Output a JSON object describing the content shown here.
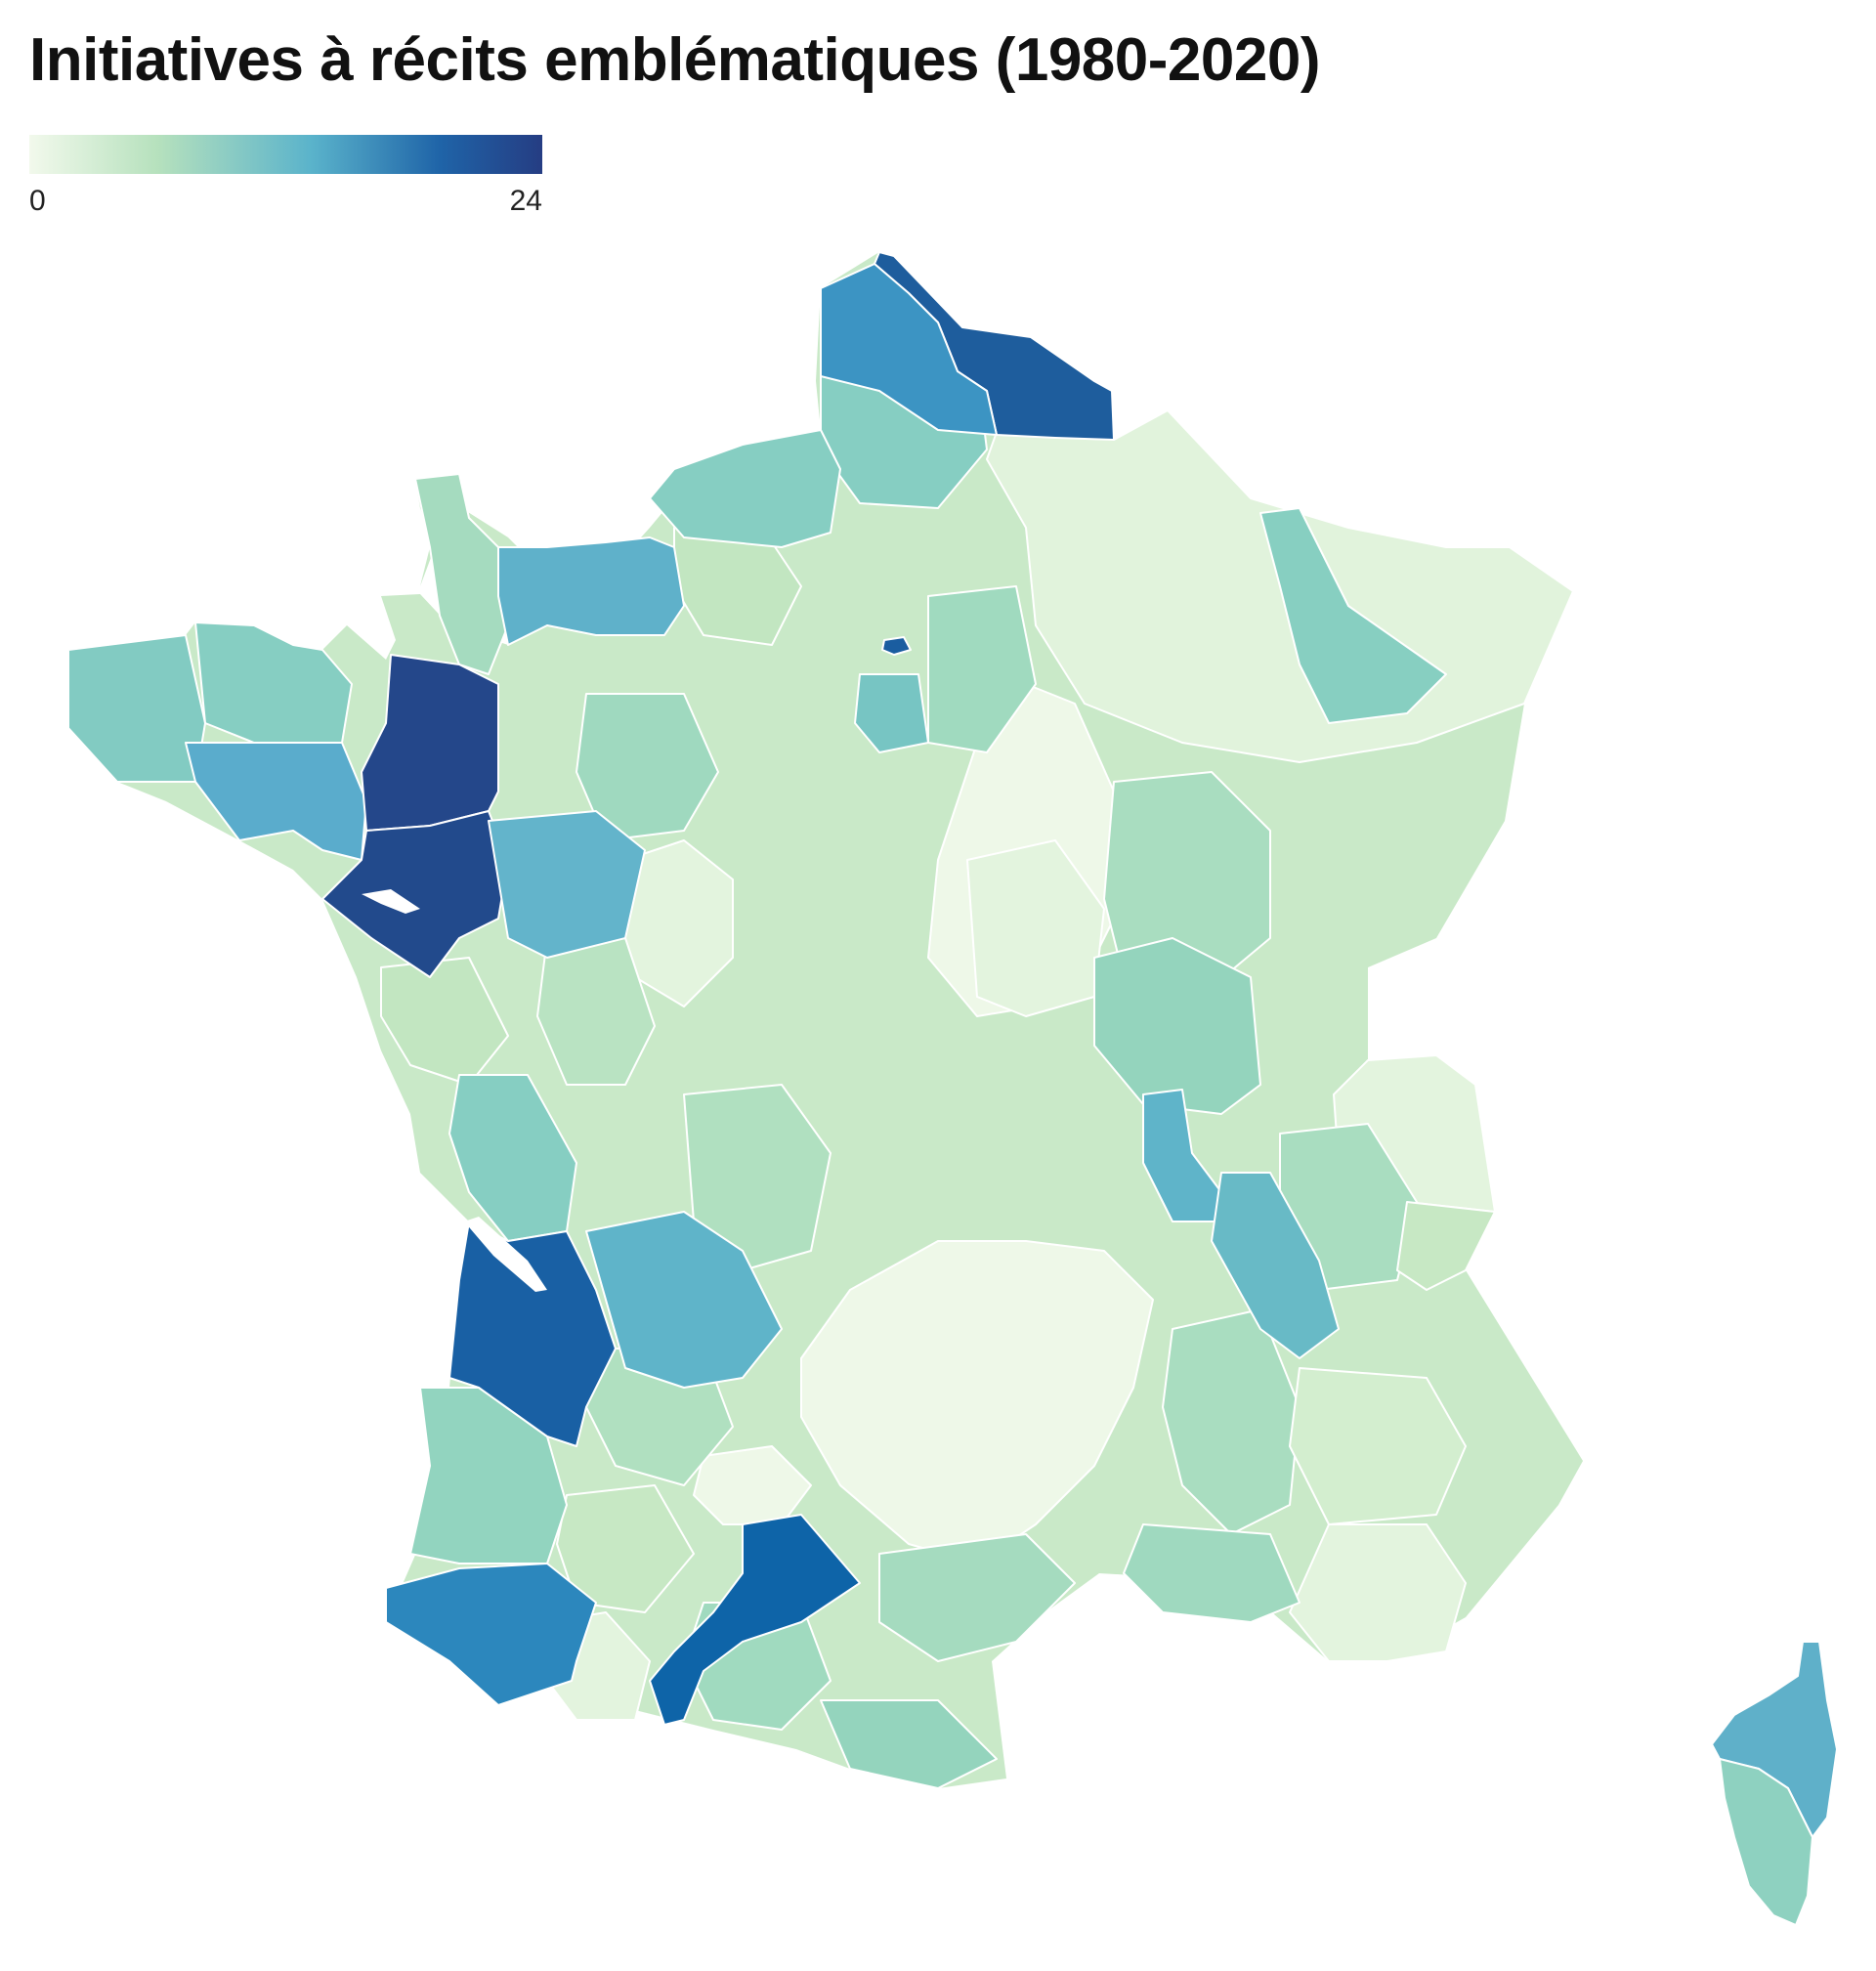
{
  "title": "Initiatives à récits emblématiques (1980-2020)",
  "legend": {
    "min_label": "0",
    "max_label": "24",
    "min": 0,
    "max": 24,
    "colors": [
      "#f2f9ec",
      "#b6e1bd",
      "#5ab3cb",
      "#1f64a8",
      "#253d83"
    ]
  },
  "map_data": {
    "type": "choropleth",
    "regions": [
      {
        "name": "nord",
        "value": 21
      },
      {
        "name": "pas-de-calais",
        "value": 15
      },
      {
        "name": "somme",
        "value": 8
      },
      {
        "name": "seine-maritime",
        "value": 8
      },
      {
        "name": "calvados",
        "value": 12
      },
      {
        "name": "manche",
        "value": 6
      },
      {
        "name": "finistere",
        "value": 9
      },
      {
        "name": "cotes-d-armor",
        "value": 8
      },
      {
        "name": "morbihan",
        "value": 12
      },
      {
        "name": "ille-et-vilaine",
        "value": 24
      },
      {
        "name": "loire-atlantique",
        "value": 23
      },
      {
        "name": "maine-et-loire",
        "value": 11
      },
      {
        "name": "paris",
        "value": 20
      },
      {
        "name": "essonne",
        "value": 12
      },
      {
        "name": "meuse-meurthe",
        "value": 9
      },
      {
        "name": "rhone",
        "value": 12
      },
      {
        "name": "isere",
        "value": 10
      },
      {
        "name": "gironde",
        "value": 21
      },
      {
        "name": "dordogne",
        "value": 12
      },
      {
        "name": "landes",
        "value": 8
      },
      {
        "name": "pyrenees-atlantiques",
        "value": 16
      },
      {
        "name": "haute-garonne",
        "value": 20
      },
      {
        "name": "charente-maritime",
        "value": 8
      },
      {
        "name": "haute-corse",
        "value": 12
      },
      {
        "name": "corse-du-sud",
        "value": 8
      }
    ]
  }
}
